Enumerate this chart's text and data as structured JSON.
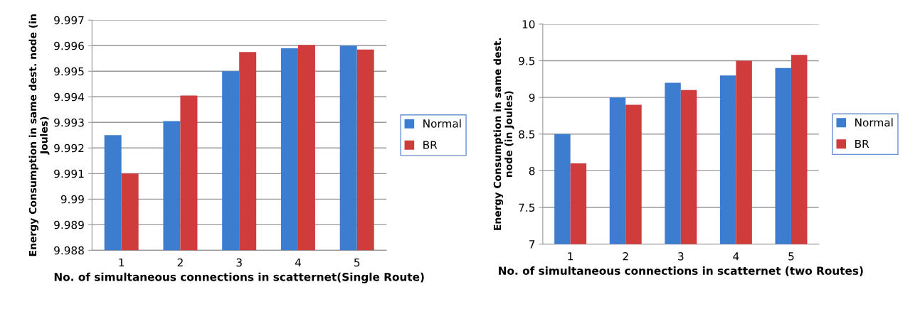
{
  "chart_data": [
    {
      "type": "bar",
      "xlabel": "No. of simultaneous connections in scatternet(Single Route)",
      "ylabel": "Energy Consumption in same dest. node (in\nJoules)",
      "categories": [
        "1",
        "2",
        "3",
        "4",
        "5"
      ],
      "series": [
        {
          "name": "Normal",
          "color": "#3d7dd0",
          "values": [
            9.9925,
            9.99305,
            9.995,
            9.9959,
            9.996
          ]
        },
        {
          "name": "BR",
          "color": "#d03c3c",
          "values": [
            9.991,
            9.99405,
            9.99575,
            9.99603,
            9.99585
          ]
        }
      ],
      "ylim": [
        9.988,
        9.997
      ],
      "yticks": [
        9.988,
        9.989,
        9.99,
        9.991,
        9.992,
        9.993,
        9.994,
        9.995,
        9.996,
        9.997
      ],
      "grid": "y",
      "legend": "right"
    },
    {
      "type": "bar",
      "xlabel": "No. of simultaneous connections in scatternet (two Routes)",
      "ylabel": "Energy Consumption in same dest.\nnode (in Joules)",
      "categories": [
        "1",
        "2",
        "3",
        "4",
        "5"
      ],
      "series": [
        {
          "name": "Normal",
          "color": "#3d7dd0",
          "values": [
            8.5,
            9.0,
            9.2,
            9.3,
            9.4
          ]
        },
        {
          "name": "BR",
          "color": "#d03c3c",
          "values": [
            8.1,
            8.9,
            9.1,
            9.5,
            9.58
          ]
        }
      ],
      "ylim": [
        7,
        10
      ],
      "yticks": [
        7,
        7.5,
        8,
        8.5,
        9,
        9.5,
        10
      ],
      "grid": "y",
      "legend": "right"
    }
  ]
}
